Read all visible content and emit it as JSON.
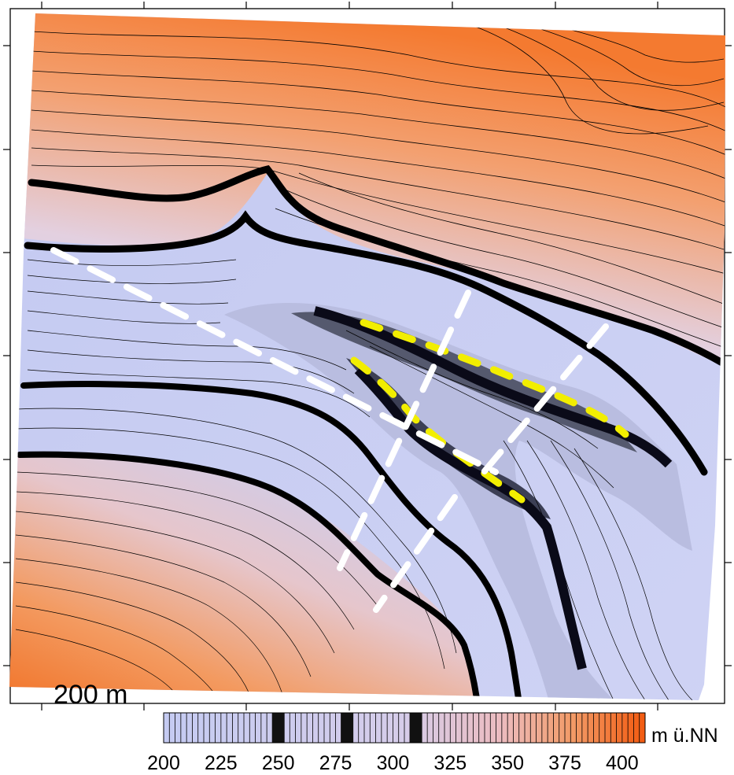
{
  "map": {
    "scale_label": "200 m",
    "unit_label": "m ü.NN",
    "colorbar": {
      "min": 200,
      "max": 410,
      "ticks": [
        "200",
        "225",
        "250",
        "275",
        "300",
        "325",
        "350",
        "375",
        "400"
      ],
      "dark_band_values": [
        250,
        280,
        310
      ],
      "low_color": "#c5cbf2",
      "mid_color": "#e2d0e2",
      "high_color": "#f07a36",
      "top_color": "#f25a10"
    },
    "colors": {
      "contour": "#000000",
      "white_dashed_lines": "#ffffff",
      "yellow_dashed_lines": "#f2ee00",
      "channel_highlight": "#1a2a8a"
    }
  }
}
